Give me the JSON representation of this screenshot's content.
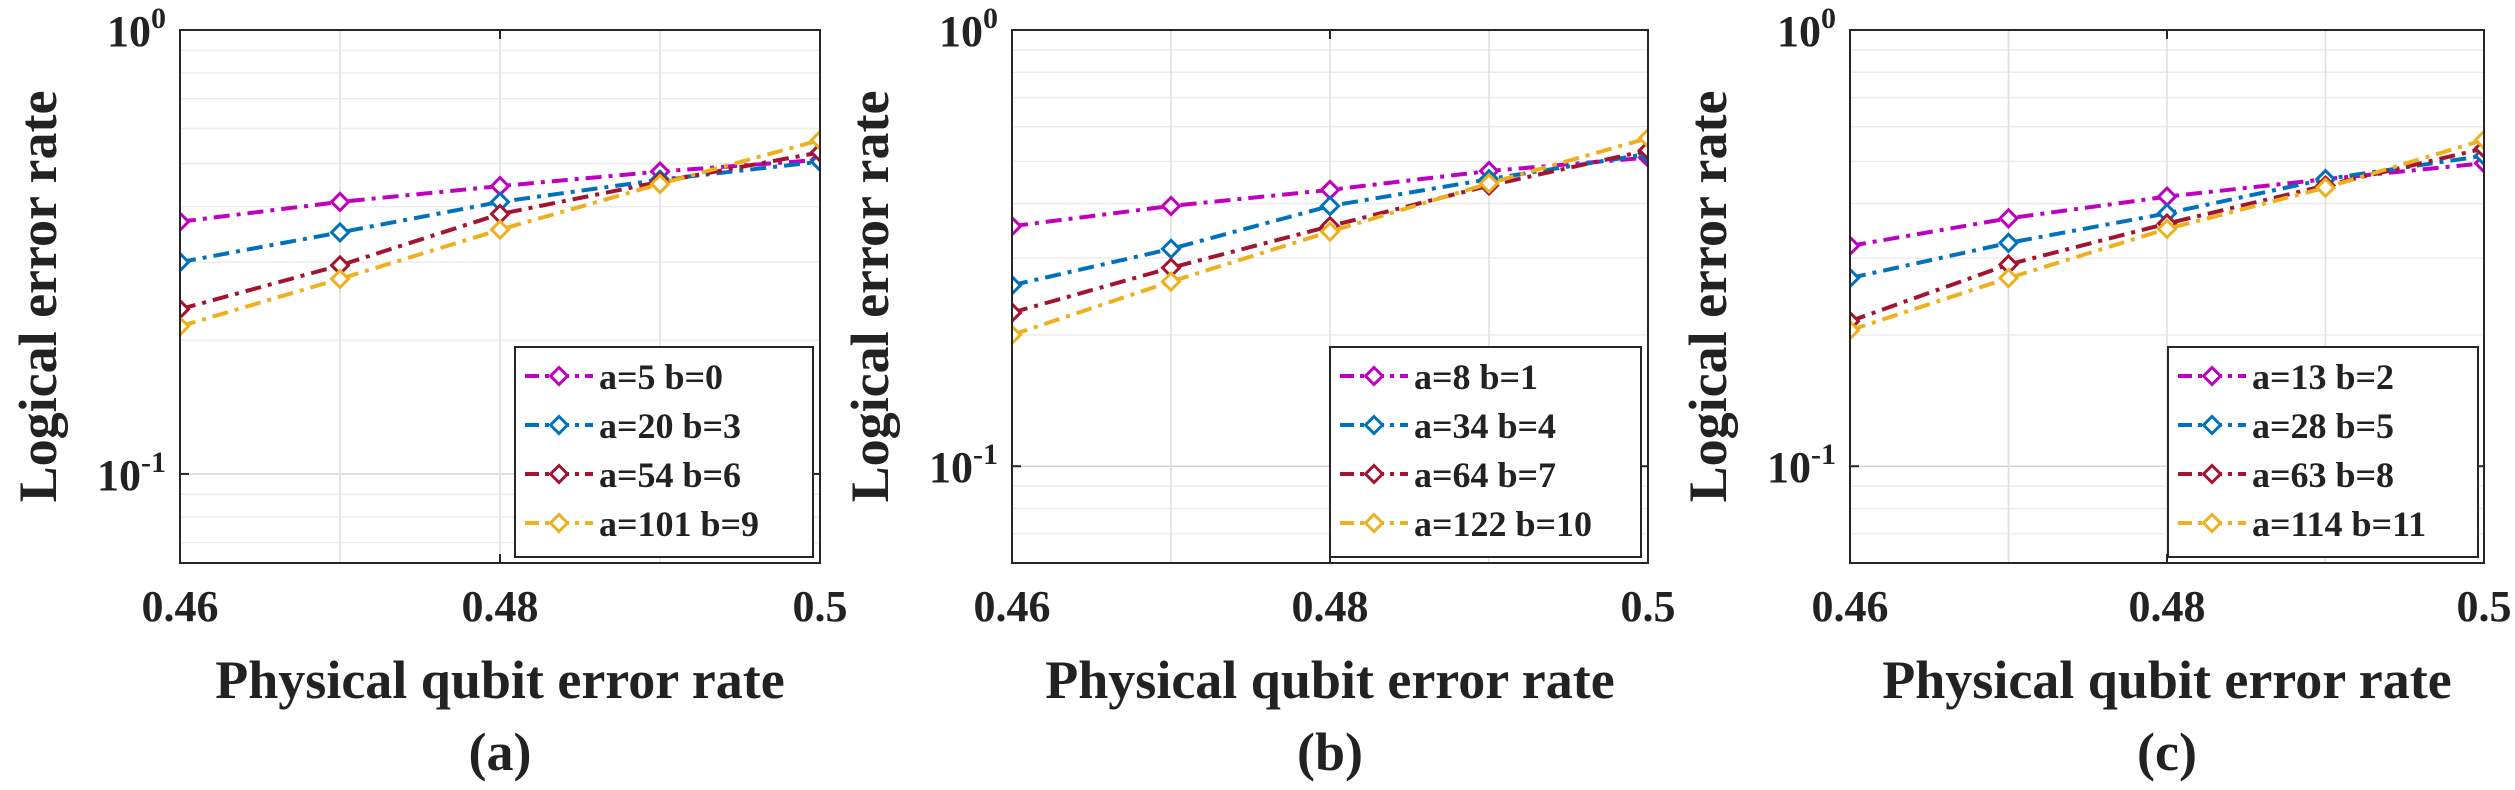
{
  "figure": {
    "colors": [
      "#C000C0",
      "#0072BD",
      "#A2142F",
      "#EDB120"
    ],
    "marker": "diamond",
    "line_style": "dash-dot"
  },
  "chart_data": [
    {
      "type": "line",
      "panel_label": "(a)",
      "xlabel": "Physical qubit error rate",
      "ylabel": "Logical error rate",
      "yscale": "log",
      "xlim": [
        0.46,
        0.5
      ],
      "ylim": [
        0.063,
        1
      ],
      "xticks": [
        0.46,
        0.48,
        0.5
      ],
      "xtick_labels": [
        "0.46",
        "0.48",
        "0.5"
      ],
      "yticks": [
        {
          "value": 0.1,
          "base": "10",
          "exp": "-1"
        },
        {
          "value": 1,
          "base": "10",
          "exp": "0"
        }
      ],
      "grid": true,
      "legend_position": "bottom-right",
      "x": [
        0.46,
        0.47,
        0.48,
        0.49,
        0.5
      ],
      "series": [
        {
          "name": "a=5 b=0",
          "values": [
            0.37,
            0.41,
            0.445,
            0.48,
            0.51
          ]
        },
        {
          "name": "a=20 b=3",
          "values": [
            0.3,
            0.35,
            0.41,
            0.46,
            0.505
          ]
        },
        {
          "name": "a=54 b=6",
          "values": [
            0.235,
            0.295,
            0.385,
            0.455,
            0.53
          ]
        },
        {
          "name": "a=101 b=9",
          "values": [
            0.215,
            0.275,
            0.355,
            0.45,
            0.565
          ]
        }
      ]
    },
    {
      "type": "line",
      "panel_label": "(b)",
      "xlabel": "Physical qubit error rate",
      "ylabel": "Logical error rate",
      "yscale": "log",
      "xlim": [
        0.46,
        0.5
      ],
      "ylim": [
        0.06,
        1
      ],
      "xticks": [
        0.46,
        0.48,
        0.5
      ],
      "xtick_labels": [
        "0.46",
        "0.48",
        "0.5"
      ],
      "yticks": [
        {
          "value": 0.1,
          "base": "10",
          "exp": "-1"
        },
        {
          "value": 1,
          "base": "10",
          "exp": "0"
        }
      ],
      "grid": true,
      "legend_position": "bottom-right",
      "x": [
        0.46,
        0.47,
        0.48,
        0.49,
        0.5
      ],
      "series": [
        {
          "name": "a=8 b=1",
          "values": [
            0.355,
            0.395,
            0.43,
            0.475,
            0.51
          ]
        },
        {
          "name": "a=34 b=4",
          "values": [
            0.26,
            0.315,
            0.395,
            0.455,
            0.52
          ]
        },
        {
          "name": "a=64 b=7",
          "values": [
            0.225,
            0.285,
            0.355,
            0.44,
            0.53
          ]
        },
        {
          "name": "a=122 b=10",
          "values": [
            0.2,
            0.265,
            0.345,
            0.445,
            0.565
          ]
        }
      ]
    },
    {
      "type": "line",
      "panel_label": "(c)",
      "xlabel": "Physical qubit error rate",
      "ylabel": "Logical error rate",
      "yscale": "log",
      "xlim": [
        0.46,
        0.5
      ],
      "ylim": [
        0.06,
        1
      ],
      "xticks": [
        0.46,
        0.48,
        0.5
      ],
      "xtick_labels": [
        "0.46",
        "0.48",
        "0.5"
      ],
      "yticks": [
        {
          "value": 0.1,
          "base": "10",
          "exp": "-1"
        },
        {
          "value": 1,
          "base": "10",
          "exp": "0"
        }
      ],
      "grid": true,
      "legend_position": "bottom-right",
      "x": [
        0.46,
        0.47,
        0.48,
        0.49,
        0.5
      ],
      "series": [
        {
          "name": "a=13 b=2",
          "values": [
            0.32,
            0.37,
            0.415,
            0.455,
            0.495
          ]
        },
        {
          "name": "a=28 b=5",
          "values": [
            0.27,
            0.325,
            0.38,
            0.455,
            0.515
          ]
        },
        {
          "name": "a=63 b=8",
          "values": [
            0.215,
            0.29,
            0.36,
            0.44,
            0.535
          ]
        },
        {
          "name": "a=114 b=11",
          "values": [
            0.205,
            0.27,
            0.35,
            0.435,
            0.56
          ]
        }
      ]
    }
  ]
}
